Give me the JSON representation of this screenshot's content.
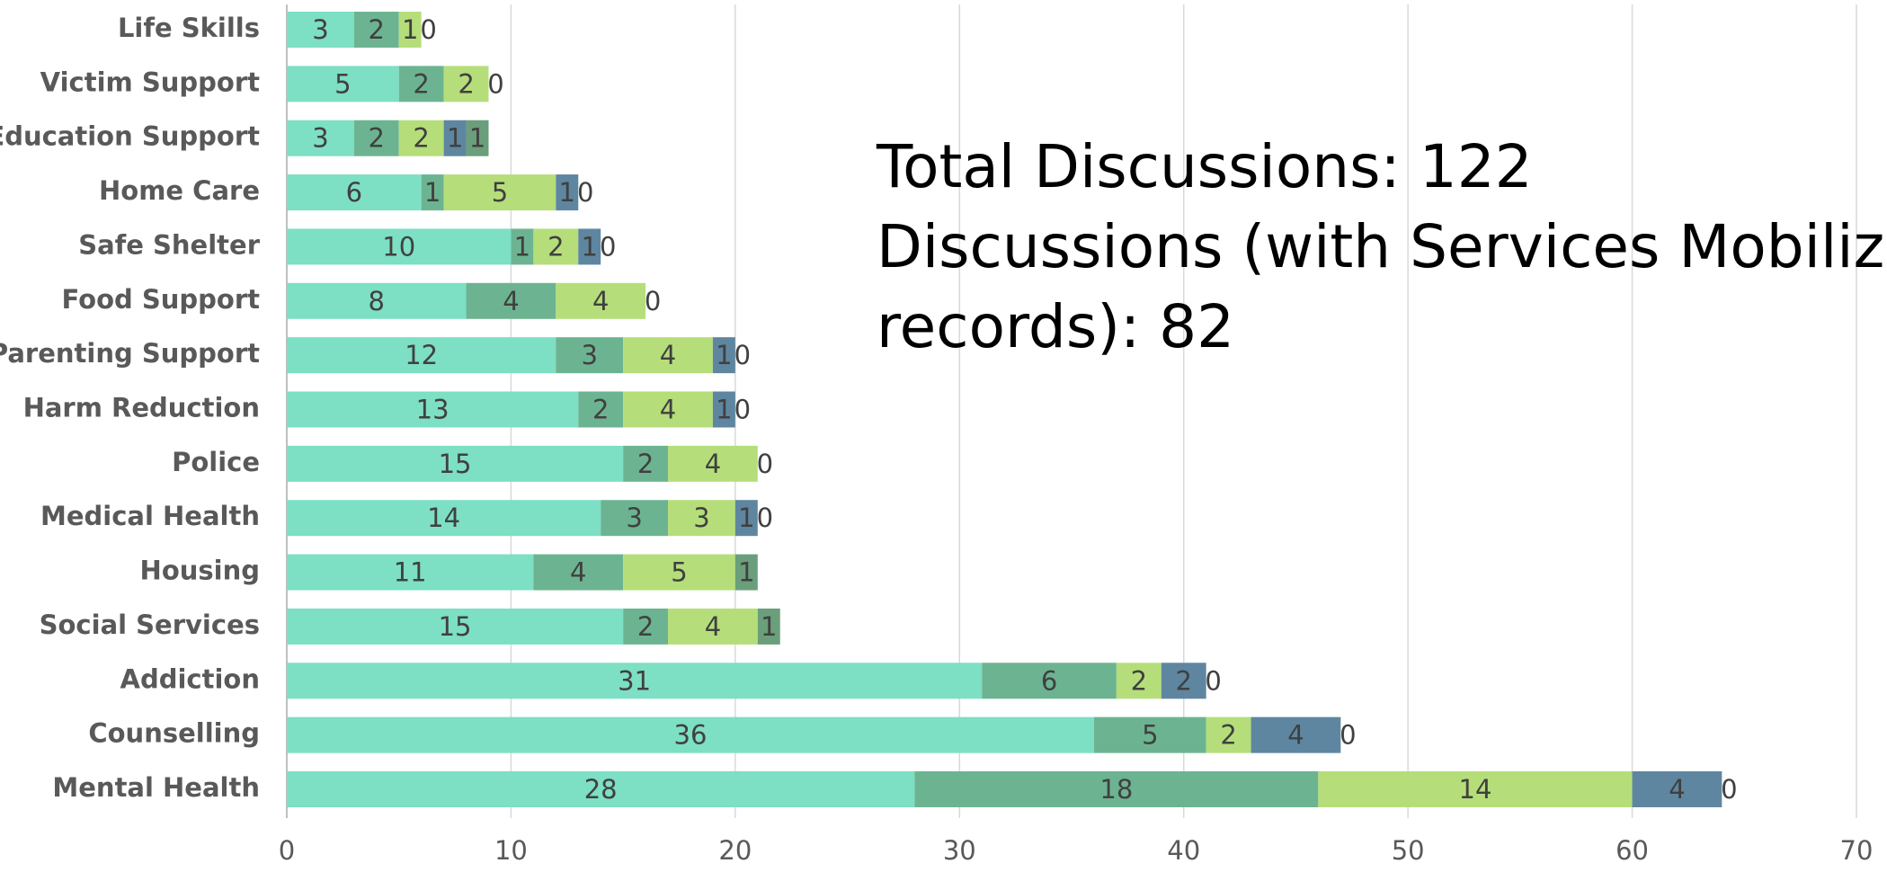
{
  "chart_data": {
    "type": "stacked_barh",
    "categories": [
      "Life Skills",
      "Victim Support",
      "Education Support",
      "Home Care",
      "Safe Shelter",
      "Food Support",
      "Parenting Support",
      "Harm Reduction",
      "Police",
      "Medical Health",
      "Housing",
      "Social Services",
      "Addiction",
      "Counselling",
      "Mental Health"
    ],
    "series": [
      {
        "color": "#7ddfc3",
        "values": [
          3,
          5,
          3,
          6,
          10,
          8,
          12,
          13,
          15,
          14,
          11,
          15,
          31,
          36,
          28
        ]
      },
      {
        "color": "#6cb491",
        "values": [
          2,
          2,
          2,
          1,
          1,
          4,
          3,
          2,
          2,
          3,
          4,
          2,
          6,
          5,
          18
        ]
      },
      {
        "color": "#b5de7a",
        "values": [
          1,
          2,
          2,
          5,
          2,
          4,
          4,
          4,
          4,
          3,
          5,
          4,
          2,
          2,
          14
        ]
      },
      {
        "color": "#5f86a0",
        "values": [
          0,
          0,
          1,
          1,
          1,
          0,
          1,
          1,
          0,
          1,
          0,
          0,
          2,
          4,
          4
        ]
      },
      {
        "color": "#6b9e7a",
        "values": [
          null,
          null,
          1,
          0,
          0,
          null,
          0,
          0,
          null,
          0,
          1,
          1,
          0,
          0,
          0
        ]
      }
    ],
    "xlim": [
      0,
      70
    ],
    "xticks": [
      0,
      10,
      20,
      30,
      40,
      50,
      60,
      70
    ],
    "grid": true,
    "annotation": [
      "Total Discussions: 122",
      "Discussions (with Services Mobilized",
      "records): 82"
    ]
  }
}
